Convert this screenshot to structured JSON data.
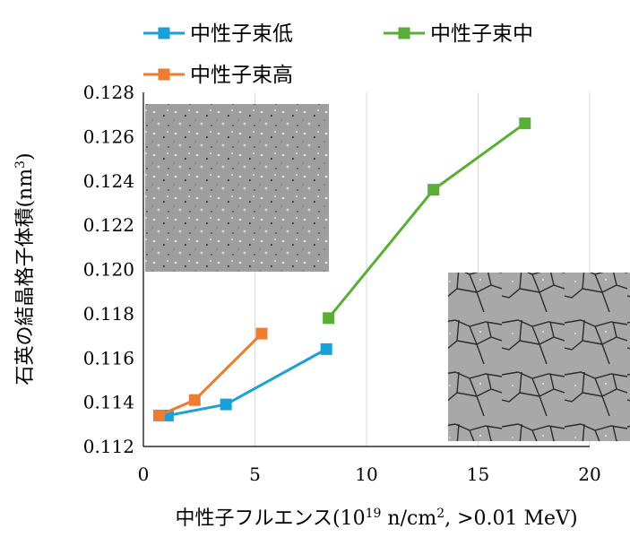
{
  "chart_data": {
    "type": "line",
    "x_title": {
      "main": "中性子フルエンス(10",
      "exp": "19",
      "mid": " n/cm",
      "sq": "2",
      "tail": ", >0.01 MeV)"
    },
    "y_title": {
      "main": "石英の結晶格子体積(nm",
      "exp": "3",
      "close": ")"
    },
    "xlim": [
      0,
      20
    ],
    "ylim": [
      0.112,
      0.128
    ],
    "x_ticks": [
      "0",
      "5",
      "10",
      "15",
      "20"
    ],
    "y_ticks": [
      "0.112",
      "0.114",
      "0.116",
      "0.118",
      "0.120",
      "0.122",
      "0.124",
      "0.126",
      "0.128"
    ],
    "grid": "vertical",
    "legend_position": "top",
    "series": [
      {
        "name": "中性子束低",
        "color": "#1ba1d9",
        "x": [
          1.1,
          3.7,
          8.2
        ],
        "y": [
          0.1134,
          0.1139,
          0.1164
        ]
      },
      {
        "name": "中性子束中",
        "color": "#59ae35",
        "x": [
          8.3,
          13.0,
          17.1
        ],
        "y": [
          0.1178,
          0.1236,
          0.1266
        ]
      },
      {
        "name": "中性子束高",
        "color": "#ee7b30",
        "x": [
          0.7,
          2.3,
          5.3
        ],
        "y": [
          0.1134,
          0.1141,
          0.1171
        ]
      }
    ]
  }
}
